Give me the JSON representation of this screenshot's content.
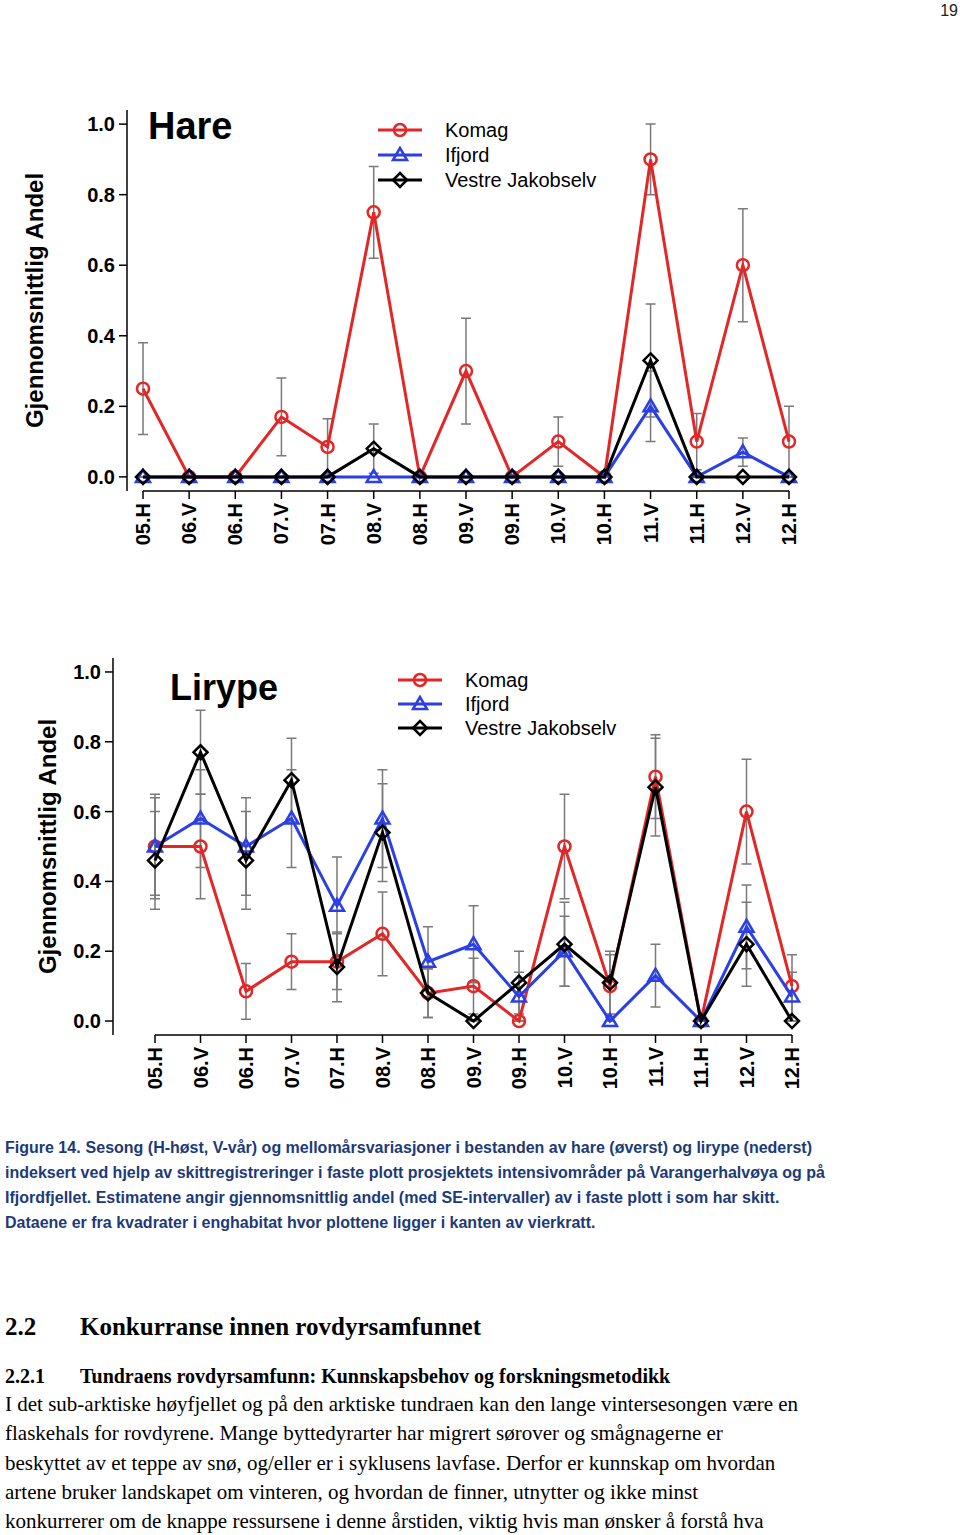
{
  "page_number": "19",
  "chart_data": [
    {
      "type": "line",
      "title": "Hare",
      "y_label": "Gjennomsnittlig Andel",
      "categories": [
        "05.H",
        "06.V",
        "06.H",
        "07.V",
        "07.H",
        "08.V",
        "08.H",
        "09.V",
        "09.H",
        "10.V",
        "10.H",
        "11.V",
        "11.H",
        "12.V",
        "12.H"
      ],
      "ylim": [
        -0.04,
        1.04
      ],
      "yticks": [
        {
          "value": 0,
          "label": "0.0"
        },
        0.2,
        0.4,
        0.6,
        0.8,
        {
          "value": 1,
          "label": "1.0"
        }
      ],
      "grid": false,
      "legend": "top",
      "series": [
        {
          "name": "Komag",
          "color": "#e32626",
          "marker": "circle",
          "values": [
            0.25,
            0,
            0,
            0.17,
            0.085,
            0.75,
            0,
            0.3,
            0,
            0.1,
            0,
            0.9,
            0.1,
            0.6,
            0.1
          ],
          "errors": [
            0.13,
            0,
            0,
            0.11,
            0.08,
            0.13,
            0,
            0.15,
            0,
            0.07,
            0,
            0.1,
            0.08,
            0.16,
            0.1
          ]
        },
        {
          "name": "Ifjord",
          "color": "#2b3fe6",
          "marker": "triangle",
          "values": [
            0,
            0,
            0,
            0,
            0,
            0,
            0,
            0,
            0,
            0,
            0,
            0.2,
            0,
            0.07,
            0
          ],
          "errors": [
            0,
            0,
            0,
            0,
            0,
            0,
            0,
            0,
            0,
            0,
            0,
            0.1,
            0,
            0.04,
            0
          ]
        },
        {
          "name": "Vestre Jakobselv",
          "color": "#000000",
          "marker": "diamond",
          "values": [
            0,
            0,
            0,
            0,
            0,
            0.08,
            0,
            0,
            0,
            0,
            0,
            0.33,
            0,
            0,
            0
          ],
          "errors": [
            0,
            0,
            0,
            0,
            0,
            0.07,
            0,
            0,
            0,
            0,
            0,
            0.16,
            0,
            0,
            0
          ]
        }
      ]
    },
    {
      "type": "line",
      "title": "Lirype",
      "y_label": "Gjennomsnittlig Andel",
      "categories": [
        "05.H",
        "06.V",
        "06.H",
        "07.V",
        "07.H",
        "08.V",
        "08.H",
        "09.V",
        "09.H",
        "10.V",
        "10.H",
        "11.V",
        "11.H",
        "12.V",
        "12.H"
      ],
      "ylim": [
        -0.04,
        1.04
      ],
      "yticks": [
        {
          "value": 0,
          "label": "0.0"
        },
        0.2,
        0.4,
        0.6,
        0.8,
        {
          "value": 1,
          "label": "1.0"
        }
      ],
      "grid": false,
      "legend": "top",
      "series": [
        {
          "name": "Komag",
          "color": "#e32626",
          "marker": "circle",
          "values": [
            0.5,
            0.5,
            0.085,
            0.17,
            0.17,
            0.25,
            0.08,
            0.1,
            0,
            0.5,
            0.1,
            0.7,
            0,
            0.6,
            0.1
          ],
          "errors": [
            0.15,
            0.15,
            0.08,
            0.08,
            0.08,
            0.12,
            0.07,
            0.08,
            0,
            0.15,
            0.09,
            0.12,
            0,
            0.15,
            0.09
          ]
        },
        {
          "name": "Ifjord",
          "color": "#2b3fe6",
          "marker": "triangle",
          "values": [
            0.5,
            0.58,
            0.5,
            0.58,
            0.33,
            0.58,
            0.17,
            0.22,
            0.07,
            0.2,
            0,
            0.13,
            0,
            0.27,
            0.07
          ],
          "errors": [
            0.14,
            0.14,
            0.14,
            0.14,
            0.14,
            0.14,
            0.1,
            0.11,
            0.07,
            0.1,
            0,
            0.09,
            0,
            0.12,
            0.07
          ]
        },
        {
          "name": "Vestre Jakobselv",
          "color": "#000000",
          "marker": "diamond",
          "values": [
            0.46,
            0.77,
            0.46,
            0.69,
            0.155,
            0.54,
            0.08,
            0,
            0.11,
            0.22,
            0.11,
            0.67,
            0,
            0.22,
            0
          ],
          "errors": [
            0.14,
            0.12,
            0.14,
            0.12,
            0.1,
            0.14,
            0.07,
            0,
            0.09,
            0.12,
            0.09,
            0.14,
            0,
            0.12,
            0
          ]
        }
      ]
    }
  ],
  "caption": {
    "label": "Figure 14.",
    "lines": [
      "Sesong (H-høst, V-vår) og mellomårsvariasjoner i bestanden av hare (øverst) og lirype (nederst)",
      "indeksert ved hjelp av skittregistreringer i faste plott prosjektets intensivområder på Varangerhalvøya og på",
      "Ifjordfjellet. Estimatene angir gjennomsnittlig andel (med SE-intervaller) av i faste plott i som har skitt.",
      "Dataene er fra kvadrater i enghabitat hvor plottene ligger i kanten av vierkratt."
    ]
  },
  "heading": {
    "number": "2.2",
    "title": "Konkurranse innen rovdyrsamfunnet"
  },
  "subheading": {
    "number": "2.2.1",
    "title": "Tundraens rovdyrsamfunn: Kunnskapsbehov og forskningsmetodikk"
  },
  "body": {
    "lines": [
      "I det sub-arktiske høyfjellet og på den arktiske tundraen kan den lange vintersesongen være en",
      "flaskehals for rovdyrene. Mange byttedyrarter har migrert sørover og smågnagerne er",
      "beskyttet av et teppe av snø, og/eller er i syklusens lavfase. Derfor er kunnskap om hvordan",
      "artene bruker landskapet om vinteren, og hvordan de finner, utnytter og ikke minst",
      "konkurrerer om de knappe ressursene i denne årstiden, viktig hvis man ønsker å forstå hva"
    ]
  }
}
